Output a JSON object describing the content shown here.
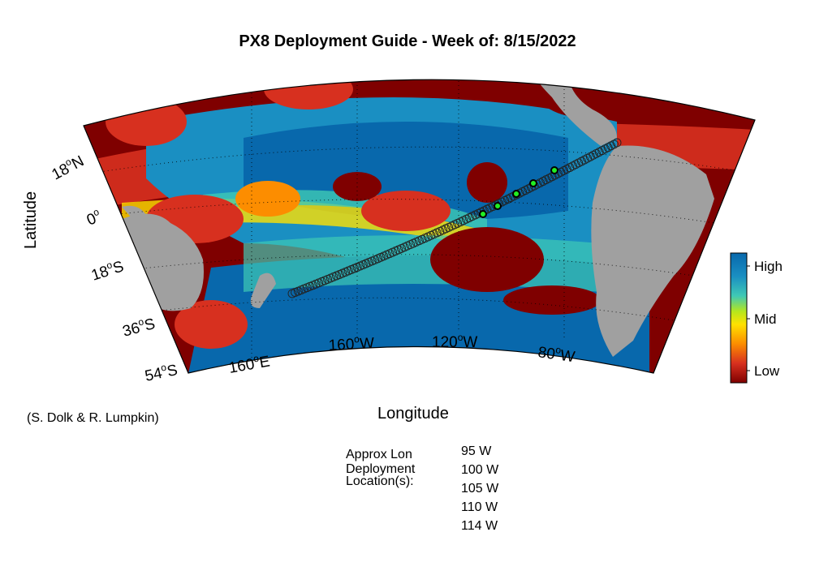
{
  "title": "PX8 Deployment Guide - Week of: 8/15/2022",
  "axes": {
    "xlabel": "Longitude",
    "ylabel": "Latitude",
    "lat_ticks": [
      {
        "deg": "18",
        "hemi": "N"
      },
      {
        "deg": "0",
        "hemi": ""
      },
      {
        "deg": "18",
        "hemi": "S"
      },
      {
        "deg": "36",
        "hemi": "S"
      },
      {
        "deg": "54",
        "hemi": "S"
      }
    ],
    "lon_ticks": [
      {
        "deg": "160",
        "hemi": "E"
      },
      {
        "deg": "160",
        "hemi": "W"
      },
      {
        "deg": "120",
        "hemi": "W"
      },
      {
        "deg": "80",
        "hemi": "W"
      }
    ]
  },
  "colorbar": {
    "labels": [
      "High",
      "Mid",
      "Low"
    ],
    "colors": [
      "#7f0000",
      "#d7301f",
      "#fc8d00",
      "#ffe100",
      "#b5e61d",
      "#3fc9b5",
      "#1a8fc2",
      "#0868ac"
    ]
  },
  "credit": "(S. Dolk & R. Lumpkin)",
  "deployment": {
    "heading_lines": [
      "Approx Lon",
      "Deployment",
      "Location(s):"
    ],
    "locations": [
      "95 W",
      "100 W",
      "105 W",
      "110 W",
      "114 W"
    ],
    "marker_color": "#22ee22"
  },
  "land_color": "#a0a0a0"
}
